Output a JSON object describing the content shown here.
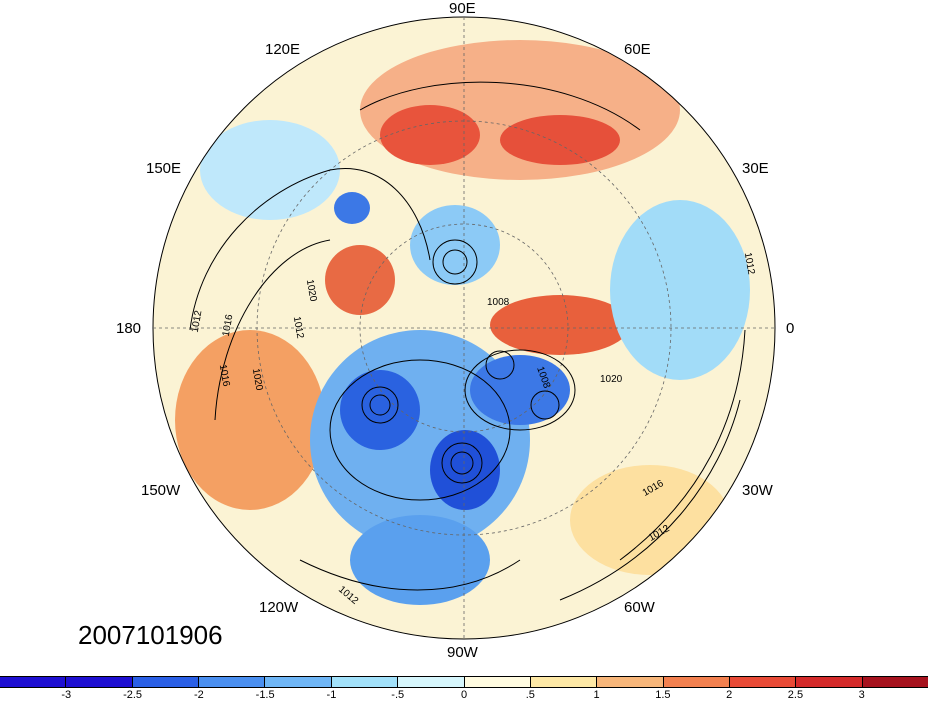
{
  "map": {
    "longitude_labels": [
      {
        "text": "90E",
        "pos": "top"
      },
      {
        "text": "60E",
        "pos": "top-right"
      },
      {
        "text": "30E",
        "pos": "upper-right"
      },
      {
        "text": "0",
        "pos": "right"
      },
      {
        "text": "30W",
        "pos": "lower-right"
      },
      {
        "text": "60W",
        "pos": "bottom-right"
      },
      {
        "text": "90W",
        "pos": "bottom"
      },
      {
        "text": "120W",
        "pos": "bottom-left"
      },
      {
        "text": "150W",
        "pos": "lower-left"
      },
      {
        "text": "180",
        "pos": "left"
      },
      {
        "text": "150E",
        "pos": "upper-left"
      },
      {
        "text": "120E",
        "pos": "top-left"
      }
    ],
    "isobar_labels": [
      "1012",
      "1016",
      "1020",
      "1012",
      "1008",
      "1020",
      "1016",
      "1012",
      "1012",
      "1016",
      "1020",
      "1008",
      "1012"
    ],
    "datestamp": "2007101906"
  },
  "colorbar": {
    "colors": [
      "#1e0fd2",
      "#2a5fe6",
      "#4a8ff0",
      "#6fb6f6",
      "#a2e1fa",
      "#d6f6fc",
      "#fffbe0",
      "#fde8a6",
      "#f7b67a",
      "#f2804f",
      "#e84a36",
      "#d42a2a",
      "#a6121e"
    ],
    "tick_labels": [
      "-3",
      "-2.5",
      "-2",
      "-1.5",
      "-1",
      "-.5",
      "0",
      ".5",
      "1",
      "1.5",
      "2",
      "2.5",
      "3"
    ]
  }
}
